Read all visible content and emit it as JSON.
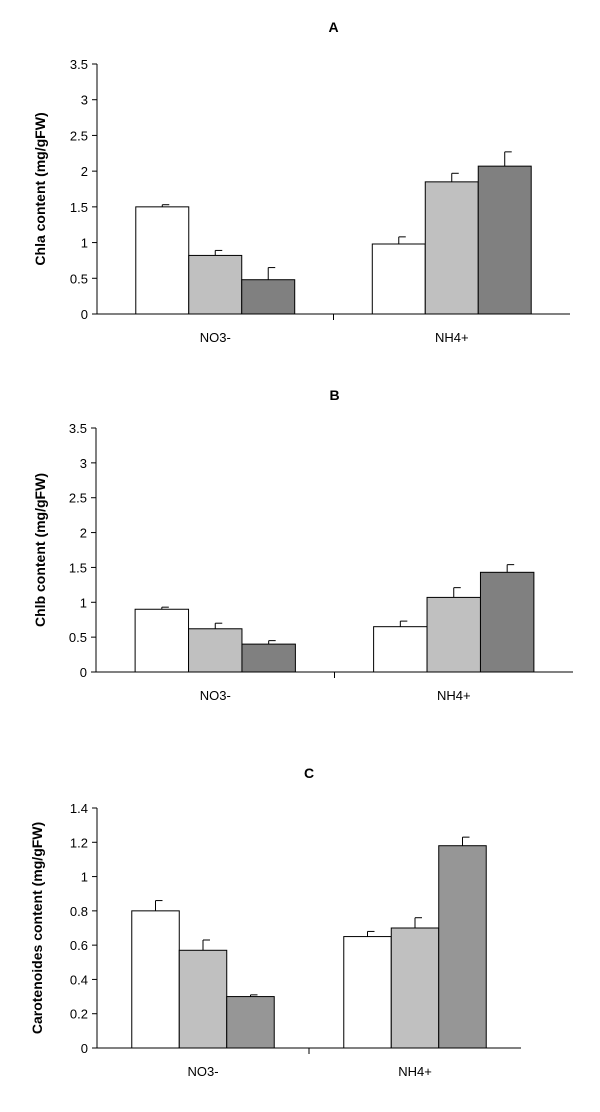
{
  "chart_data": [
    {
      "type": "bar",
      "title": "A",
      "xlabel": "",
      "ylabel": "Chla content (mg/gFW)",
      "categories": [
        "NO3-",
        "NH4+"
      ],
      "ylim": [
        0,
        3.5
      ],
      "yticks": [
        "0",
        "0.5",
        "1",
        "1.5",
        "2",
        "2.5",
        "3",
        "3.5"
      ],
      "series": [
        {
          "color": "#ffffff",
          "values": [
            1.5,
            0.98
          ],
          "errors": [
            0.03,
            0.1
          ]
        },
        {
          "color": "#c0c0c0",
          "values": [
            0.82,
            1.85
          ],
          "errors": [
            0.07,
            0.12
          ]
        },
        {
          "color": "#808080",
          "values": [
            0.48,
            2.07
          ],
          "errors": [
            0.17,
            0.2
          ]
        }
      ]
    },
    {
      "type": "bar",
      "title": "B",
      "xlabel": "",
      "ylabel": "Chlb content (mg/gFW)",
      "categories": [
        "NO3-",
        "NH4+"
      ],
      "ylim": [
        0,
        3.5
      ],
      "yticks": [
        "0",
        "0.5",
        "1",
        "1.5",
        "2",
        "2.5",
        "3",
        "3.5"
      ],
      "series": [
        {
          "color": "#ffffff",
          "values": [
            0.9,
            0.65
          ],
          "errors": [
            0.03,
            0.08
          ]
        },
        {
          "color": "#c0c0c0",
          "values": [
            0.62,
            1.07
          ],
          "errors": [
            0.08,
            0.14
          ]
        },
        {
          "color": "#808080",
          "values": [
            0.4,
            1.43
          ],
          "errors": [
            0.05,
            0.11
          ]
        }
      ]
    },
    {
      "type": "bar",
      "title": "C",
      "xlabel": "",
      "ylabel": "Carotenoides content (mg/gFW)",
      "categories": [
        "NO3-",
        "NH4+"
      ],
      "ylim": [
        0,
        1.4
      ],
      "yticks": [
        "0",
        "0.2",
        "0.4",
        "0.6",
        "0.8",
        "1",
        "1.2",
        "1.4"
      ],
      "series": [
        {
          "color": "#ffffff",
          "values": [
            0.8,
            0.65
          ],
          "errors": [
            0.06,
            0.03
          ]
        },
        {
          "color": "#c0c0c0",
          "values": [
            0.57,
            0.7
          ],
          "errors": [
            0.06,
            0.06
          ]
        },
        {
          "color": "#969696",
          "values": [
            0.3,
            1.18
          ],
          "errors": [
            0.01,
            0.05
          ]
        }
      ]
    }
  ]
}
